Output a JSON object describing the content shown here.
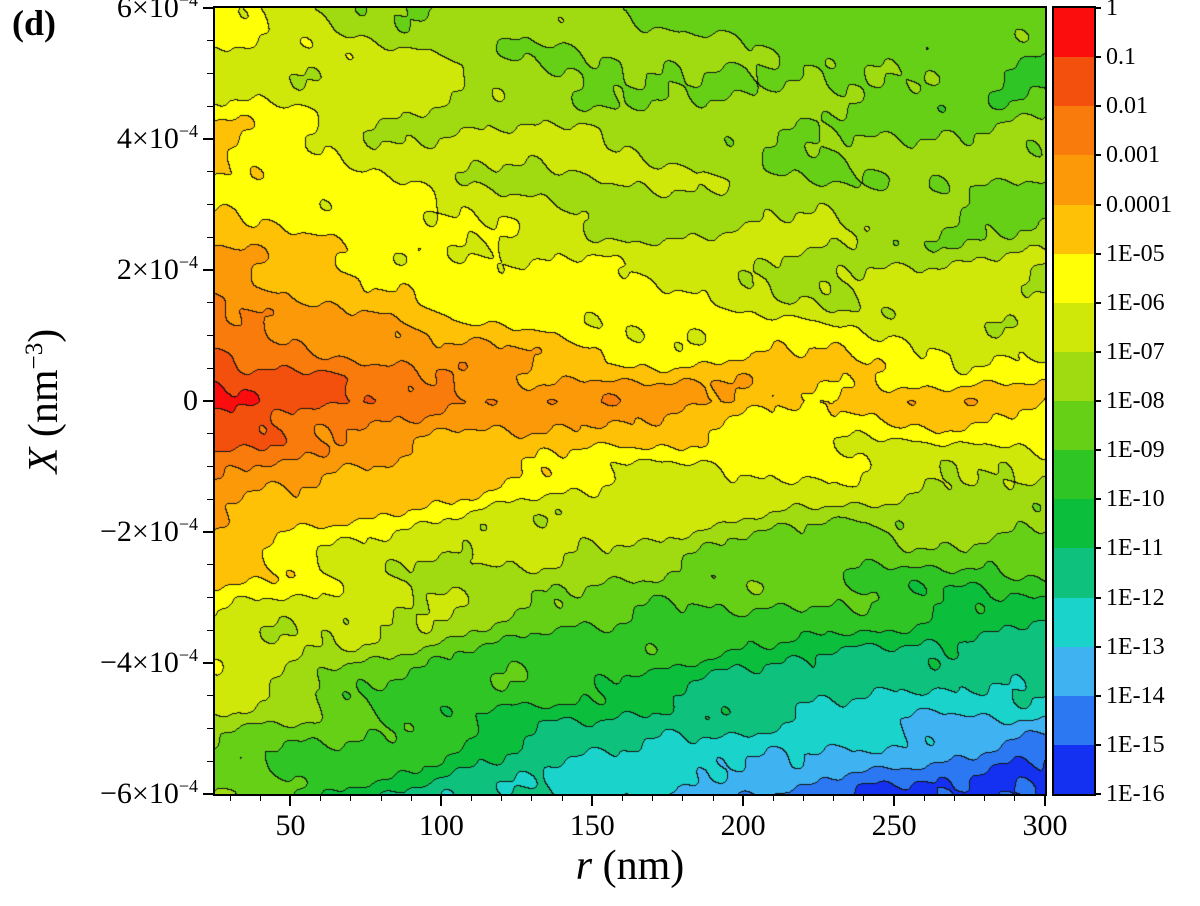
{
  "figure": {
    "panel_label": "(d)",
    "background": "#ffffff"
  },
  "chart_data": {
    "type": "contour",
    "xlabel": {
      "symbol": "r",
      "unit_text": " (nm)"
    },
    "ylabel": {
      "symbol": "X",
      "unit_pre": " (nm",
      "unit_sup": "−3",
      "unit_post": ")"
    },
    "x_axis": {
      "min": 25,
      "max": 300,
      "major_ticks": [
        50,
        100,
        150,
        200,
        250,
        300
      ],
      "minor_step": 10
    },
    "y_axis": {
      "min": -0.0006,
      "max": 0.0006,
      "major_ticks": [
        0.0006,
        0.0004,
        0.0002,
        0,
        -0.0002,
        -0.0004,
        -0.0006
      ],
      "minor_step": 5e-05
    },
    "z_scale": "log10",
    "colorbar": {
      "tick_labels": [
        "1",
        "0.1",
        "0.01",
        "0.001",
        "0.0001",
        "1E-05",
        "1E-06",
        "1E-07",
        "1E-08",
        "1E-09",
        "1E-10",
        "1E-11",
        "1E-12",
        "1E-13",
        "1E-14",
        "1E-15",
        "1E-16"
      ],
      "band_colors": [
        "#fb0d0d",
        "#f4500d",
        "#f97b0b",
        "#fc9908",
        "#ffc105",
        "#ffff05",
        "#cfe80a",
        "#9fdb10",
        "#66d017",
        "#2fc524",
        "#0bbf3d",
        "#0ec27e",
        "#1ad4cb",
        "#3fb2f2",
        "#2b78f2",
        "#1430f0"
      ]
    },
    "contour_line_color": "#141414",
    "grid": {
      "r": [
        10,
        35,
        60,
        85,
        110,
        135,
        160,
        185,
        210,
        235,
        260,
        280,
        300
      ],
      "X": [
        0.0006,
        0.0005,
        0.0004,
        0.0003,
        0.0002,
        0.0001,
        0,
        -0.0001,
        -0.0002,
        -0.0003,
        -0.0004,
        -0.0005,
        -0.0006
      ],
      "log10_value": [
        [
          -5.7,
          -6.3,
          -7.0,
          -7.4,
          -7.7,
          -7.9,
          -8.1,
          -8.3,
          -8.4,
          -8.5,
          -8.6,
          -8.75,
          -8.9
        ],
        [
          -5.4,
          -6.0,
          -6.6,
          -7.0,
          -7.3,
          -7.55,
          -7.75,
          -7.95,
          -8.1,
          -8.25,
          -8.4,
          -8.5,
          -8.6
        ],
        [
          -4.9,
          -5.5,
          -6.1,
          -6.55,
          -6.9,
          -7.2,
          -7.45,
          -7.65,
          -7.8,
          -7.95,
          -8.1,
          -8.2,
          -8.3
        ],
        [
          -4.2,
          -4.9,
          -5.5,
          -6.0,
          -6.4,
          -6.7,
          -7.0,
          -7.2,
          -7.4,
          -7.55,
          -7.7,
          -7.8,
          -7.9
        ],
        [
          -3.2,
          -4.1,
          -4.8,
          -5.3,
          -5.7,
          -6.1,
          -6.4,
          -6.6,
          -6.8,
          -7.0,
          -7.15,
          -7.25,
          -7.35
        ],
        [
          -1.5,
          -2.6,
          -3.4,
          -4.0,
          -4.5,
          -4.9,
          -5.3,
          -5.6,
          -5.8,
          -6.0,
          -6.1,
          -6.2,
          -6.3
        ],
        [
          -0.2,
          -1.0,
          -1.7,
          -2.2,
          -2.8,
          -3.2,
          -3.7,
          -4.0,
          -4.2,
          -4.4,
          -4.6,
          -4.8,
          -5.0
        ],
        [
          -1.8,
          -2.9,
          -3.7,
          -4.3,
          -4.8,
          -5.2,
          -5.6,
          -5.9,
          -6.1,
          -6.3,
          -6.4,
          -6.45,
          -6.5
        ],
        [
          -3.6,
          -4.6,
          -5.3,
          -5.9,
          -6.3,
          -6.7,
          -7.0,
          -7.3,
          -7.55,
          -7.8,
          -8.0,
          -8.15,
          -8.3
        ],
        [
          -4.8,
          -5.7,
          -6.4,
          -7.0,
          -7.5,
          -7.9,
          -8.3,
          -8.7,
          -9.0,
          -9.3,
          -9.6,
          -9.8,
          -10.0
        ],
        [
          -5.8,
          -6.7,
          -7.5,
          -8.2,
          -8.8,
          -9.3,
          -9.8,
          -10.2,
          -10.6,
          -11.0,
          -11.3,
          -11.5,
          -11.7
        ],
        [
          -6.8,
          -7.8,
          -8.7,
          -9.5,
          -10.2,
          -10.8,
          -11.4,
          -11.9,
          -12.3,
          -12.7,
          -13.0,
          -13.25,
          -13.5
        ],
        [
          -7.6,
          -8.8,
          -9.8,
          -10.7,
          -11.5,
          -12.2,
          -12.9,
          -13.5,
          -14.0,
          -14.5,
          -14.9,
          -15.2,
          -15.5
        ]
      ]
    }
  }
}
